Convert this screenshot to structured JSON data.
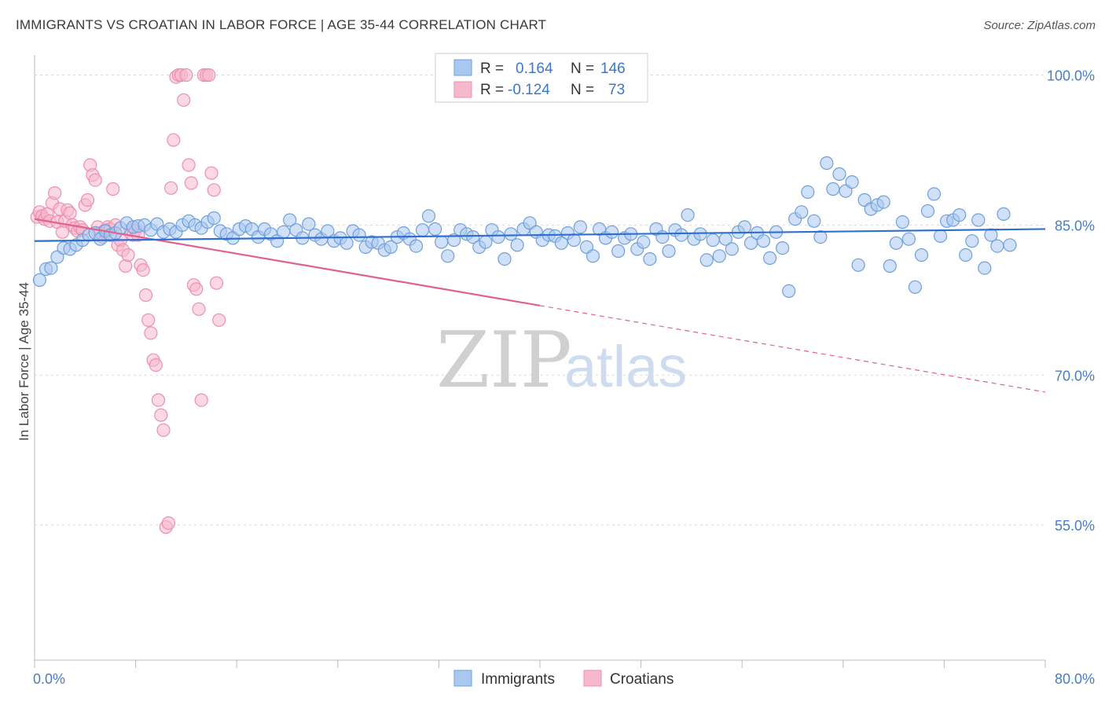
{
  "header": {
    "title": "IMMIGRANTS VS CROATIAN IN LABOR FORCE | AGE 35-44 CORRELATION CHART",
    "source": "Source: ZipAtlas.com"
  },
  "watermark": {
    "zip": "ZIP",
    "atlas": "atlas"
  },
  "legend": {
    "rows": [
      {
        "r_label": "R =",
        "r_value": "0.164",
        "n_label": "N =",
        "n_value": "146"
      },
      {
        "r_label": "R =",
        "r_value": "-0.124",
        "n_label": "N =",
        "n_value": "73"
      }
    ]
  },
  "bottom_legend": {
    "immigrants": "Immigrants",
    "croatians": "Croatians"
  },
  "colors": {
    "immigrants_fill": "#a9c8f0",
    "immigrants_stroke": "#6f9fdc",
    "immigrants_line": "#2f6fd0",
    "croatians_fill": "#f7b8cc",
    "croatians_stroke": "#ec8fae",
    "croatians_line": "#e0608e",
    "tick_label": "#4a7cc4",
    "grid": "#d8d8d8"
  },
  "chart_data": {
    "type": "scatter",
    "ylabel": "In Labor Force | Age 35-44",
    "xlim": [
      0,
      80
    ],
    "ylim": [
      41.5,
      102
    ],
    "x_ticks": [
      {
        "value": 0,
        "label": "0.0%"
      },
      {
        "value": 80,
        "label": "80.0%"
      }
    ],
    "y_ticks": [
      {
        "value": 100,
        "label": "100.0%"
      },
      {
        "value": 85,
        "label": "85.0%"
      },
      {
        "value": 70,
        "label": "70.0%"
      },
      {
        "value": 55,
        "label": "55.0%"
      }
    ],
    "series": [
      {
        "name": "Immigrants",
        "trend": {
          "x1": 0,
          "y1": 83.4,
          "x2": 80,
          "y2": 84.6,
          "solid_until": 80
        },
        "points": [
          [
            0.4,
            79.5
          ],
          [
            0.9,
            80.6
          ],
          [
            1.3,
            80.7
          ],
          [
            1.8,
            81.8
          ],
          [
            2.3,
            82.7
          ],
          [
            2.8,
            82.6
          ],
          [
            3.3,
            83.0
          ],
          [
            3.8,
            83.5
          ],
          [
            4.3,
            84.0
          ],
          [
            4.8,
            84.2
          ],
          [
            5.2,
            83.6
          ],
          [
            5.6,
            84.4
          ],
          [
            6.0,
            84.0
          ],
          [
            6.4,
            84.2
          ],
          [
            6.8,
            84.7
          ],
          [
            7.3,
            85.2
          ],
          [
            7.8,
            84.8
          ],
          [
            8.2,
            84.9
          ],
          [
            8.7,
            85.0
          ],
          [
            9.2,
            84.5
          ],
          [
            9.7,
            85.1
          ],
          [
            10.2,
            84.3
          ],
          [
            10.7,
            84.6
          ],
          [
            11.2,
            84.3
          ],
          [
            11.7,
            85.0
          ],
          [
            12.2,
            85.4
          ],
          [
            12.7,
            85.0
          ],
          [
            13.2,
            84.7
          ],
          [
            13.7,
            85.3
          ],
          [
            14.2,
            85.7
          ],
          [
            14.7,
            84.4
          ],
          [
            15.2,
            84.1
          ],
          [
            15.7,
            83.7
          ],
          [
            16.2,
            84.6
          ],
          [
            16.7,
            84.9
          ],
          [
            17.2,
            84.6
          ],
          [
            17.7,
            83.8
          ],
          [
            18.2,
            84.6
          ],
          [
            18.7,
            84.1
          ],
          [
            19.2,
            83.4
          ],
          [
            19.7,
            84.3
          ],
          [
            20.2,
            85.5
          ],
          [
            20.7,
            84.5
          ],
          [
            21.2,
            83.7
          ],
          [
            21.7,
            85.1
          ],
          [
            22.2,
            84.0
          ],
          [
            22.7,
            83.6
          ],
          [
            23.2,
            84.4
          ],
          [
            23.7,
            83.4
          ],
          [
            24.2,
            83.7
          ],
          [
            24.7,
            83.2
          ],
          [
            25.2,
            84.4
          ],
          [
            25.7,
            84.0
          ],
          [
            26.2,
            82.8
          ],
          [
            26.7,
            83.3
          ],
          [
            27.2,
            83.2
          ],
          [
            27.7,
            82.5
          ],
          [
            28.2,
            82.8
          ],
          [
            28.7,
            83.8
          ],
          [
            29.2,
            84.2
          ],
          [
            29.7,
            83.6
          ],
          [
            30.2,
            82.9
          ],
          [
            30.7,
            84.5
          ],
          [
            31.2,
            85.9
          ],
          [
            31.7,
            84.6
          ],
          [
            32.2,
            83.3
          ],
          [
            32.7,
            81.9
          ],
          [
            33.2,
            83.5
          ],
          [
            33.7,
            84.5
          ],
          [
            34.2,
            84.1
          ],
          [
            34.7,
            83.8
          ],
          [
            35.2,
            82.8
          ],
          [
            35.7,
            83.3
          ],
          [
            36.2,
            84.5
          ],
          [
            36.7,
            83.8
          ],
          [
            37.2,
            81.6
          ],
          [
            37.7,
            84.1
          ],
          [
            38.2,
            83.0
          ],
          [
            38.7,
            84.6
          ],
          [
            39.2,
            85.2
          ],
          [
            39.7,
            84.3
          ],
          [
            40.2,
            83.5
          ],
          [
            40.7,
            84.0
          ],
          [
            41.2,
            83.9
          ],
          [
            41.7,
            83.2
          ],
          [
            42.2,
            84.2
          ],
          [
            42.7,
            83.5
          ],
          [
            43.2,
            84.8
          ],
          [
            43.7,
            82.8
          ],
          [
            44.2,
            81.9
          ],
          [
            44.7,
            84.6
          ],
          [
            45.2,
            83.7
          ],
          [
            45.7,
            84.3
          ],
          [
            46.2,
            82.4
          ],
          [
            46.7,
            83.7
          ],
          [
            47.2,
            84.1
          ],
          [
            47.7,
            82.6
          ],
          [
            48.2,
            83.3
          ],
          [
            48.7,
            81.6
          ],
          [
            49.2,
            84.6
          ],
          [
            49.7,
            83.8
          ],
          [
            50.2,
            82.4
          ],
          [
            50.7,
            84.5
          ],
          [
            51.2,
            84.0
          ],
          [
            51.7,
            86.0
          ],
          [
            52.2,
            83.6
          ],
          [
            52.7,
            84.1
          ],
          [
            53.2,
            81.5
          ],
          [
            53.7,
            83.5
          ],
          [
            54.2,
            81.9
          ],
          [
            54.7,
            83.6
          ],
          [
            55.2,
            82.6
          ],
          [
            55.7,
            84.3
          ],
          [
            56.2,
            84.8
          ],
          [
            56.7,
            83.2
          ],
          [
            57.2,
            84.2
          ],
          [
            57.7,
            83.4
          ],
          [
            58.2,
            81.7
          ],
          [
            58.7,
            84.3
          ],
          [
            59.2,
            82.7
          ],
          [
            59.7,
            78.4
          ],
          [
            60.2,
            85.6
          ],
          [
            60.7,
            86.3
          ],
          [
            61.2,
            88.3
          ],
          [
            61.7,
            85.4
          ],
          [
            62.2,
            83.8
          ],
          [
            62.7,
            91.2
          ],
          [
            63.2,
            88.6
          ],
          [
            63.7,
            90.1
          ],
          [
            64.2,
            88.4
          ],
          [
            64.7,
            89.3
          ],
          [
            65.2,
            81.0
          ],
          [
            65.7,
            87.5
          ],
          [
            66.2,
            86.6
          ],
          [
            66.7,
            87.0
          ],
          [
            67.2,
            87.3
          ],
          [
            67.7,
            80.9
          ],
          [
            68.2,
            83.2
          ],
          [
            68.7,
            85.3
          ],
          [
            69.2,
            83.6
          ],
          [
            69.7,
            78.8
          ],
          [
            70.2,
            82.0
          ],
          [
            70.7,
            86.4
          ],
          [
            71.2,
            88.1
          ],
          [
            71.7,
            83.9
          ],
          [
            72.2,
            85.4
          ],
          [
            72.7,
            85.5
          ],
          [
            73.2,
            86.0
          ],
          [
            73.7,
            82.0
          ],
          [
            74.2,
            83.4
          ],
          [
            74.7,
            85.5
          ],
          [
            75.2,
            80.7
          ],
          [
            75.7,
            84.0
          ],
          [
            76.2,
            82.9
          ],
          [
            76.7,
            86.1
          ],
          [
            77.2,
            83.0
          ]
        ]
      },
      {
        "name": "Croatians",
        "trend": {
          "x1": 0,
          "y1": 85.6,
          "x2": 80,
          "y2": 68.3,
          "solid_until": 40
        },
        "points": [
          [
            0.2,
            85.8
          ],
          [
            0.4,
            86.3
          ],
          [
            0.6,
            85.9
          ],
          [
            0.8,
            85.6
          ],
          [
            1.0,
            86.1
          ],
          [
            1.2,
            85.4
          ],
          [
            1.4,
            87.2
          ],
          [
            1.6,
            88.2
          ],
          [
            1.8,
            85.3
          ],
          [
            2.0,
            86.6
          ],
          [
            2.2,
            84.3
          ],
          [
            2.4,
            85.4
          ],
          [
            2.6,
            86.5
          ],
          [
            2.8,
            86.2
          ],
          [
            3.0,
            85.0
          ],
          [
            3.2,
            84.7
          ],
          [
            3.4,
            84.4
          ],
          [
            3.6,
            84.8
          ],
          [
            3.8,
            84.5
          ],
          [
            4.0,
            87.0
          ],
          [
            4.2,
            87.5
          ],
          [
            4.4,
            91.0
          ],
          [
            4.6,
            90.0
          ],
          [
            4.8,
            89.5
          ],
          [
            5.0,
            84.8
          ],
          [
            5.2,
            84.2
          ],
          [
            5.4,
            83.8
          ],
          [
            5.6,
            84.5
          ],
          [
            5.8,
            84.8
          ],
          [
            6.0,
            84.6
          ],
          [
            6.2,
            88.6
          ],
          [
            6.4,
            85.0
          ],
          [
            6.6,
            83.0
          ],
          [
            6.8,
            83.5
          ],
          [
            7.0,
            82.5
          ],
          [
            7.2,
            80.9
          ],
          [
            7.4,
            82.0
          ],
          [
            7.6,
            84.5
          ],
          [
            7.8,
            84.0
          ],
          [
            8.0,
            84.5
          ],
          [
            8.2,
            84.0
          ],
          [
            8.4,
            81.0
          ],
          [
            8.6,
            80.5
          ],
          [
            8.8,
            78.0
          ],
          [
            9.0,
            75.5
          ],
          [
            9.2,
            74.2
          ],
          [
            9.4,
            71.5
          ],
          [
            9.6,
            71.0
          ],
          [
            9.8,
            67.5
          ],
          [
            10.0,
            66.0
          ],
          [
            10.2,
            64.5
          ],
          [
            10.4,
            54.8
          ],
          [
            10.6,
            55.2
          ],
          [
            10.8,
            88.7
          ],
          [
            11.0,
            93.5
          ],
          [
            11.2,
            99.8
          ],
          [
            11.4,
            100.0
          ],
          [
            11.6,
            100.0
          ],
          [
            11.8,
            97.5
          ],
          [
            12.0,
            100.0
          ],
          [
            12.2,
            91.0
          ],
          [
            12.4,
            89.2
          ],
          [
            12.6,
            79.0
          ],
          [
            12.8,
            78.6
          ],
          [
            13.0,
            76.6
          ],
          [
            13.2,
            67.5
          ],
          [
            13.4,
            100.0
          ],
          [
            13.6,
            100.0
          ],
          [
            13.8,
            100.0
          ],
          [
            14.0,
            90.2
          ],
          [
            14.2,
            88.5
          ],
          [
            14.4,
            79.2
          ],
          [
            14.6,
            75.5
          ]
        ]
      }
    ]
  }
}
